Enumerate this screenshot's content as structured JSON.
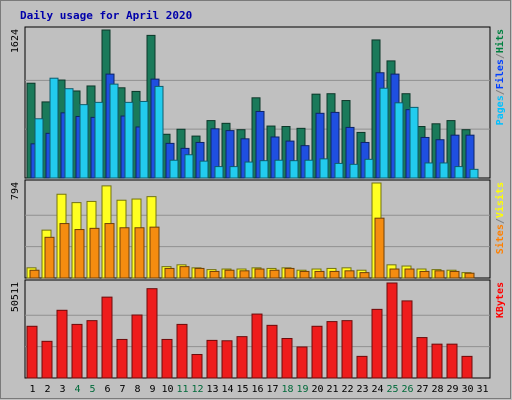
{
  "chart_data": [
    {
      "type": "bar",
      "title": "Daily usage for April 2020",
      "ylabel_max": "1624",
      "categories": [
        "1",
        "2",
        "3",
        "4",
        "5",
        "6",
        "7",
        "8",
        "9",
        "10",
        "11",
        "12",
        "13",
        "14",
        "15",
        "16",
        "17",
        "18",
        "19",
        "20",
        "21",
        "22",
        "23",
        "24",
        "25",
        "26",
        "27",
        "28",
        "29",
        "30",
        "31"
      ],
      "weekend_days": [
        "4",
        "5",
        "11",
        "12",
        "18",
        "19",
        "25",
        "26"
      ],
      "legend": [
        {
          "text": "Pages",
          "color": "#00c0ff"
        },
        {
          "text": "/",
          "color": "#808080"
        },
        {
          "text": "Files",
          "color": "#0040ff"
        },
        {
          "text": "/",
          "color": "#808080"
        },
        {
          "text": "Hits",
          "color": "#008040"
        }
      ],
      "series": [
        {
          "name": "Hits",
          "color": "#1a7a5a",
          "values": [
            1040,
            835,
            1075,
            955,
            1010,
            1624,
            990,
            950,
            1565,
            480,
            535,
            460,
            630,
            600,
            530,
            880,
            570,
            565,
            545,
            920,
            925,
            850,
            500,
            1515,
            1285,
            925,
            565,
            595,
            630,
            530,
            0
          ]
        },
        {
          "name": "Files",
          "color": "#1f4fe0",
          "values": [
            375,
            490,
            715,
            675,
            665,
            1140,
            680,
            560,
            1085,
            380,
            325,
            390,
            540,
            520,
            430,
            730,
            450,
            405,
            355,
            710,
            720,
            555,
            390,
            1155,
            1140,
            750,
            445,
            420,
            470,
            470,
            0
          ]
        },
        {
          "name": "Pages",
          "color": "#22ccee",
          "values": [
            650,
            1095,
            980,
            805,
            830,
            1030,
            830,
            840,
            1005,
            195,
            255,
            185,
            125,
            125,
            175,
            190,
            195,
            190,
            195,
            210,
            160,
            150,
            205,
            985,
            825,
            775,
            165,
            165,
            125,
            95,
            0
          ]
        }
      ]
    },
    {
      "type": "bar",
      "ylabel_max": "794",
      "legend": [
        {
          "text": "Sites",
          "color": "#ff8000"
        },
        {
          "text": "/",
          "color": "#808080"
        },
        {
          "text": "Visits",
          "color": "#ffff00"
        }
      ],
      "series": [
        {
          "name": "Visits",
          "color": "#ffff22",
          "values": [
            85,
            400,
            700,
            630,
            640,
            770,
            650,
            660,
            680,
            95,
            110,
            85,
            70,
            75,
            75,
            85,
            80,
            85,
            65,
            75,
            80,
            85,
            65,
            794,
            110,
            100,
            75,
            70,
            65,
            45,
            0
          ]
        },
        {
          "name": "Sites",
          "color": "#f58c10",
          "values": [
            65,
            340,
            455,
            405,
            415,
            455,
            420,
            420,
            425,
            80,
            95,
            80,
            55,
            65,
            60,
            75,
            65,
            80,
            55,
            55,
            55,
            60,
            45,
            500,
            75,
            75,
            55,
            60,
            55,
            40,
            0
          ]
        }
      ]
    },
    {
      "type": "bar",
      "ylabel_max": "50511",
      "legend": [
        {
          "text": "KBytes",
          "color": "#ff0000"
        }
      ],
      "series": [
        {
          "name": "KBytes",
          "color": "#ee1c1c",
          "values": [
            27500,
            19500,
            36000,
            28500,
            30500,
            43000,
            20500,
            33500,
            47500,
            20500,
            28500,
            12500,
            20000,
            19800,
            22000,
            34000,
            28000,
            21000,
            16500,
            27500,
            30000,
            30500,
            11500,
            36500,
            50511,
            41000,
            21500,
            18000,
            18000,
            11500,
            0
          ]
        }
      ]
    }
  ]
}
